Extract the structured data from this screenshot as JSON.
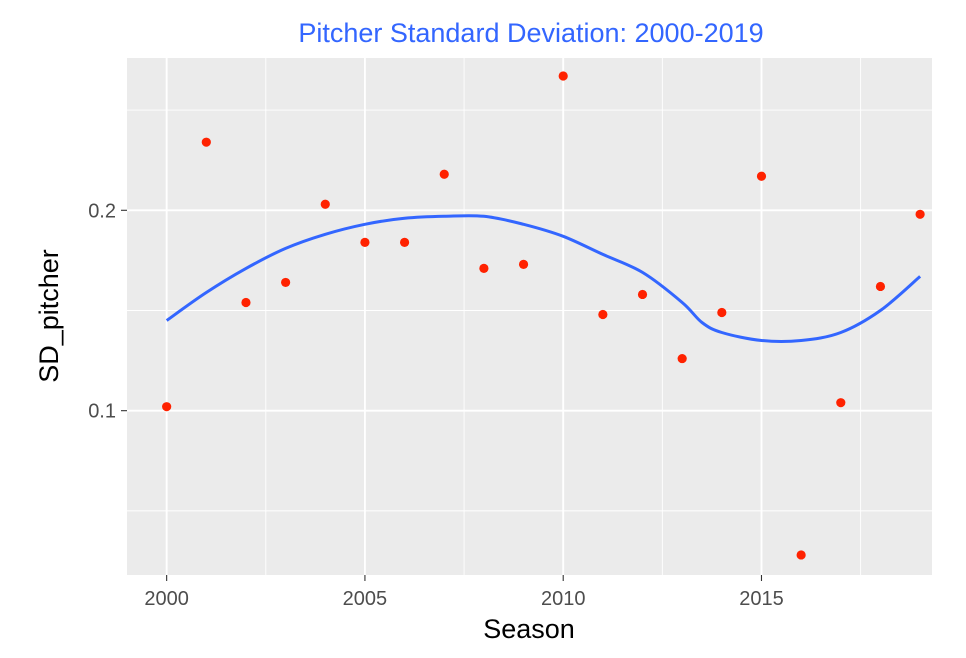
{
  "chart_data": {
    "type": "scatter",
    "title": "Pitcher Standard Deviation: 2000-2019",
    "xlabel": "Season",
    "ylabel": "SD_pitcher",
    "xlim": [
      1999.0,
      2019.3
    ],
    "ylim": [
      0.018,
      0.276
    ],
    "x_ticks": [
      2000,
      2005,
      2010,
      2015
    ],
    "x_tick_labels": [
      "2000",
      "2005",
      "2010",
      "2015"
    ],
    "y_ticks": [
      0.1,
      0.2
    ],
    "y_tick_labels": [
      "0.1",
      "0.2"
    ],
    "grid": true,
    "legend": "none",
    "colors": {
      "title": "#3366FF",
      "points": "#FF2200",
      "smooth_line": "#3366FF",
      "panel_background": "#EBEBEB",
      "grid": "#FFFFFF"
    },
    "series": [
      {
        "kind": "points",
        "x": [
          2000,
          2001,
          2002,
          2003,
          2004,
          2005,
          2006,
          2007,
          2008,
          2009,
          2010,
          2011,
          2012,
          2013,
          2014,
          2015,
          2016,
          2017,
          2018,
          2019
        ],
        "y": [
          0.102,
          0.234,
          0.154,
          0.164,
          0.203,
          0.184,
          0.184,
          0.218,
          0.171,
          0.173,
          0.267,
          0.148,
          0.158,
          0.126,
          0.149,
          0.217,
          0.028,
          0.104,
          0.162,
          0.198
        ]
      },
      {
        "kind": "smooth",
        "x": [
          2000,
          2001,
          2002,
          2003,
          2004,
          2005,
          2006,
          2007,
          2008,
          2009,
          2010,
          2011,
          2012,
          2013,
          2013.5,
          2014,
          2015,
          2016,
          2017,
          2018,
          2019
        ],
        "y": [
          0.145,
          0.159,
          0.171,
          0.181,
          0.188,
          0.193,
          0.196,
          0.197,
          0.197,
          0.193,
          0.187,
          0.178,
          0.169,
          0.154,
          0.144,
          0.139,
          0.135,
          0.135,
          0.139,
          0.15,
          0.167
        ]
      }
    ]
  }
}
